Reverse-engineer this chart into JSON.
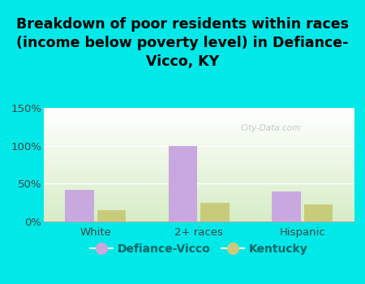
{
  "categories": [
    "White",
    "2+ races",
    "Hispanic"
  ],
  "defiance_values": [
    42,
    100,
    40
  ],
  "kentucky_values": [
    15,
    25,
    23
  ],
  "defiance_color": "#c9a8e0",
  "kentucky_color": "#c8cc7a",
  "background_color": "#00e8e8",
  "plot_bg_top": "#ffffff",
  "plot_bg_bottom": "#d8eecc",
  "title": "Breakdown of poor residents within races\n(income below poverty level) in Defiance-\nVicco, KY",
  "ylim": [
    0,
    150
  ],
  "yticks": [
    0,
    50,
    100,
    150
  ],
  "ytick_labels": [
    "0%",
    "50%",
    "100%",
    "150%"
  ],
  "legend_labels": [
    "Defiance-Vicco",
    "Kentucky"
  ],
  "watermark": "City-Data.com",
  "title_fontsize": 12.5,
  "tick_fontsize": 9.5,
  "legend_fontsize": 10
}
